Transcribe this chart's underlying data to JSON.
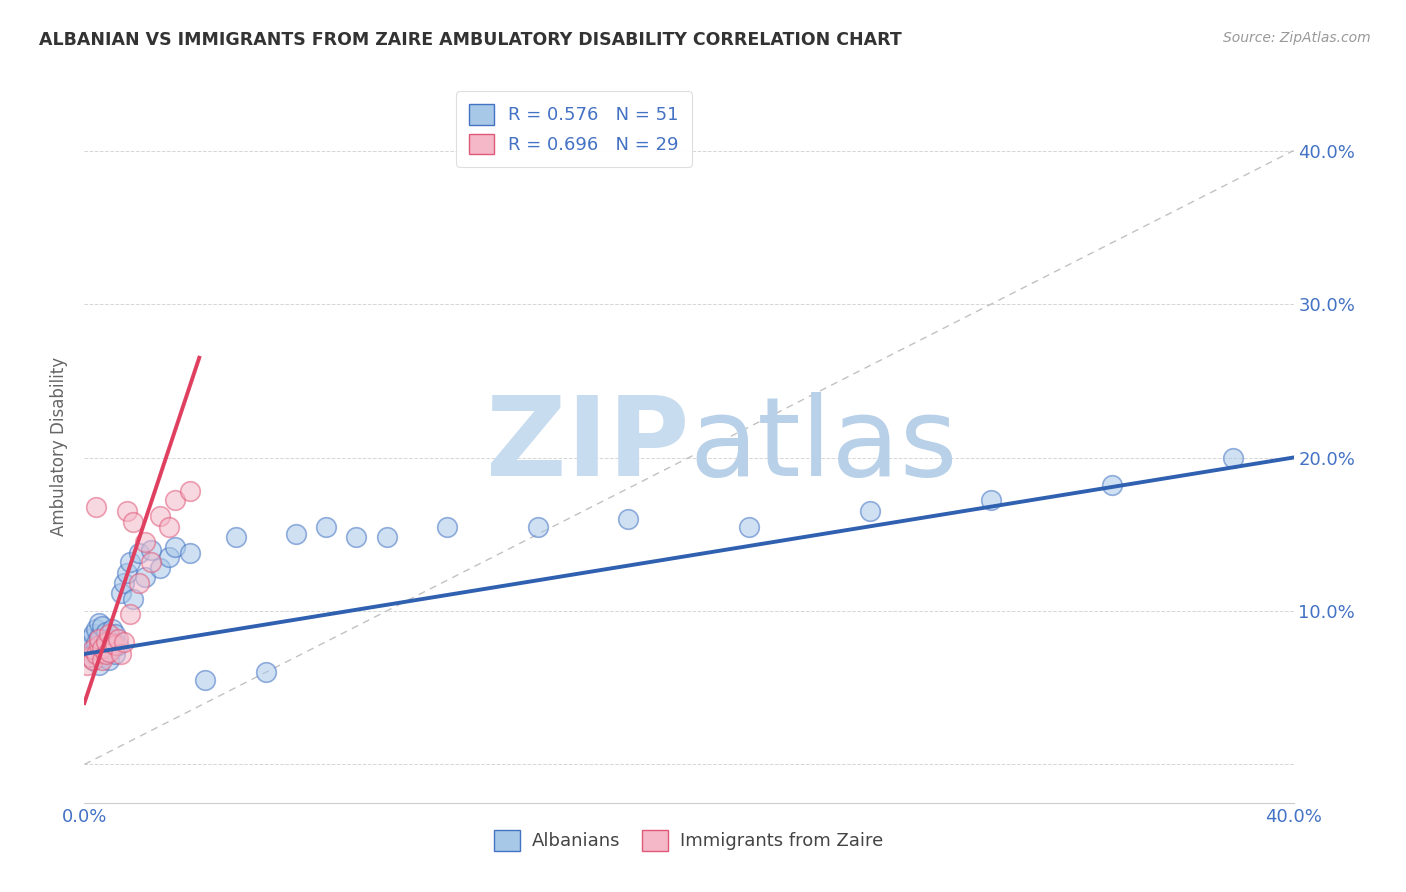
{
  "title": "ALBANIAN VS IMMIGRANTS FROM ZAIRE AMBULATORY DISABILITY CORRELATION CHART",
  "source": "Source: ZipAtlas.com",
  "ylabel": "Ambulatory Disability",
  "xlim": [
    0.0,
    0.4
  ],
  "ylim": [
    -0.025,
    0.44
  ],
  "legend_r1": "0.576",
  "legend_n1": "51",
  "legend_r2": "0.696",
  "legend_n2": "29",
  "color_albanian_fill": "#A8C8E8",
  "color_albanian_edge": "#4472C4",
  "color_zaire_fill": "#F4B8C8",
  "color_zaire_edge": "#E05878",
  "color_line_albanian": "#3060B0",
  "color_line_zaire": "#E04060",
  "color_legend_text": "#4472C4",
  "watermark_zip_color": "#C8DCF0",
  "watermark_atlas_color": "#B8D0E8",
  "background_color": "#FFFFFF",
  "grid_color": "#CCCCCC",
  "albanian_x": [
    0.001,
    0.002,
    0.002,
    0.003,
    0.003,
    0.003,
    0.004,
    0.004,
    0.005,
    0.005,
    0.005,
    0.006,
    0.006,
    0.006,
    0.007,
    0.007,
    0.007,
    0.008,
    0.008,
    0.009,
    0.009,
    0.01,
    0.01,
    0.011,
    0.012,
    0.013,
    0.014,
    0.015,
    0.016,
    0.018,
    0.02,
    0.022,
    0.025,
    0.028,
    0.03,
    0.035,
    0.04,
    0.05,
    0.06,
    0.07,
    0.08,
    0.09,
    0.1,
    0.12,
    0.15,
    0.18,
    0.22,
    0.26,
    0.3,
    0.34,
    0.38
  ],
  "albanian_y": [
    0.075,
    0.078,
    0.082,
    0.068,
    0.085,
    0.072,
    0.079,
    0.088,
    0.065,
    0.083,
    0.092,
    0.07,
    0.076,
    0.09,
    0.073,
    0.08,
    0.086,
    0.068,
    0.082,
    0.075,
    0.088,
    0.072,
    0.085,
    0.078,
    0.112,
    0.118,
    0.125,
    0.132,
    0.108,
    0.138,
    0.122,
    0.14,
    0.128,
    0.135,
    0.142,
    0.138,
    0.055,
    0.148,
    0.06,
    0.15,
    0.155,
    0.148,
    0.148,
    0.155,
    0.155,
    0.16,
    0.155,
    0.165,
    0.172,
    0.182,
    0.2
  ],
  "zaire_x": [
    0.001,
    0.002,
    0.003,
    0.003,
    0.004,
    0.004,
    0.005,
    0.005,
    0.006,
    0.006,
    0.007,
    0.007,
    0.008,
    0.008,
    0.009,
    0.01,
    0.011,
    0.012,
    0.013,
    0.014,
    0.015,
    0.016,
    0.018,
    0.02,
    0.022,
    0.025,
    0.028,
    0.03,
    0.035
  ],
  "zaire_y": [
    0.065,
    0.07,
    0.068,
    0.075,
    0.072,
    0.168,
    0.078,
    0.082,
    0.068,
    0.076,
    0.072,
    0.08,
    0.073,
    0.085,
    0.079,
    0.078,
    0.082,
    0.072,
    0.08,
    0.165,
    0.098,
    0.158,
    0.118,
    0.145,
    0.132,
    0.162,
    0.155,
    0.172,
    0.178
  ],
  "albanian_trendline_x": [
    0.0,
    0.4
  ],
  "albanian_trendline_y": [
    0.072,
    0.2
  ],
  "zaire_trendline_x": [
    0.0,
    0.038
  ],
  "zaire_trendline_y": [
    0.04,
    0.265
  ]
}
